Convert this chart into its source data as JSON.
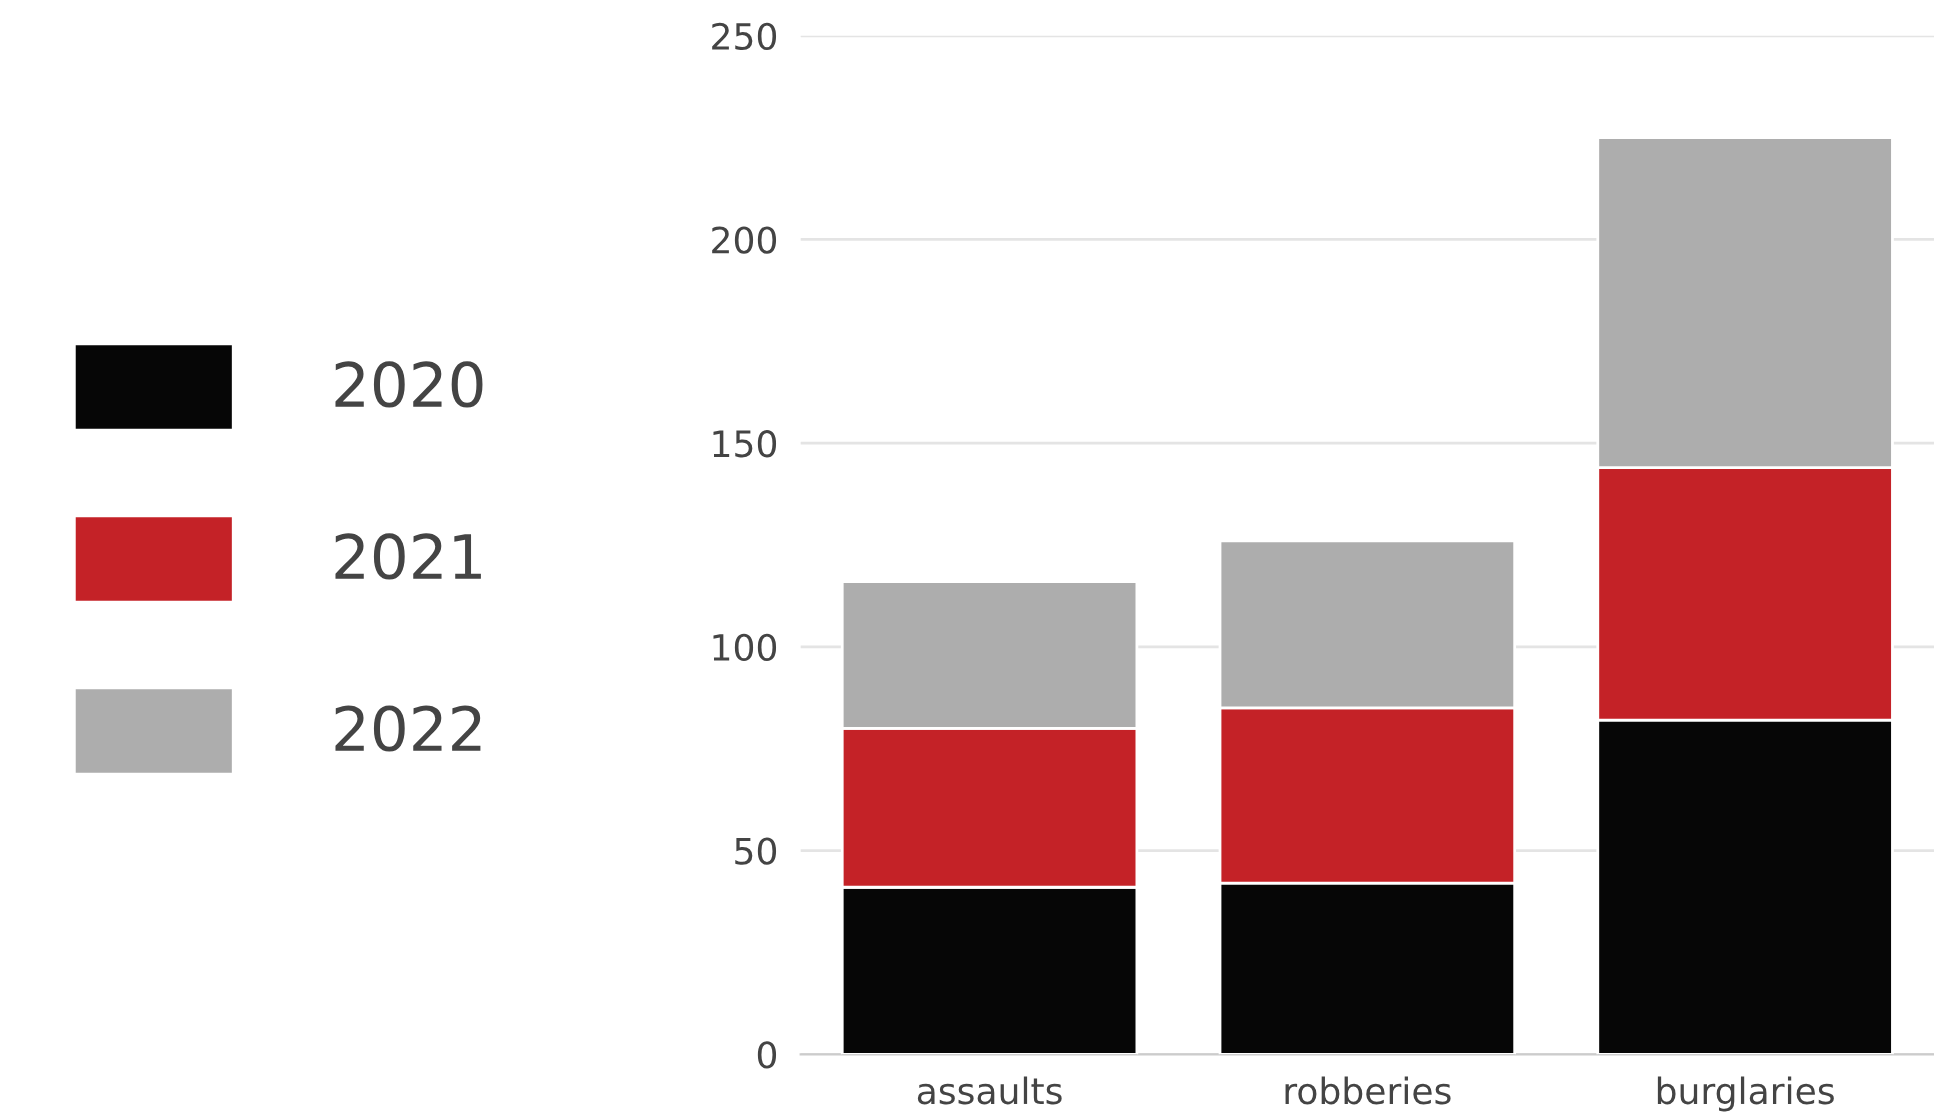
{
  "chart_data": {
    "type": "bar",
    "stacked": true,
    "categories": [
      "assaults",
      "robberies",
      "burglaries"
    ],
    "series": [
      {
        "name": "2020",
        "color": "#060606",
        "values": [
          41,
          42,
          82
        ]
      },
      {
        "name": "2021",
        "color": "#c42227",
        "values": [
          39,
          43,
          62
        ]
      },
      {
        "name": "2022",
        "color": "#adadad",
        "values": [
          36,
          41,
          81
        ]
      }
    ],
    "ylim": [
      0,
      250
    ],
    "yticks": [
      0,
      50,
      100,
      150,
      200,
      250
    ],
    "grid": "y",
    "legend": "left"
  }
}
